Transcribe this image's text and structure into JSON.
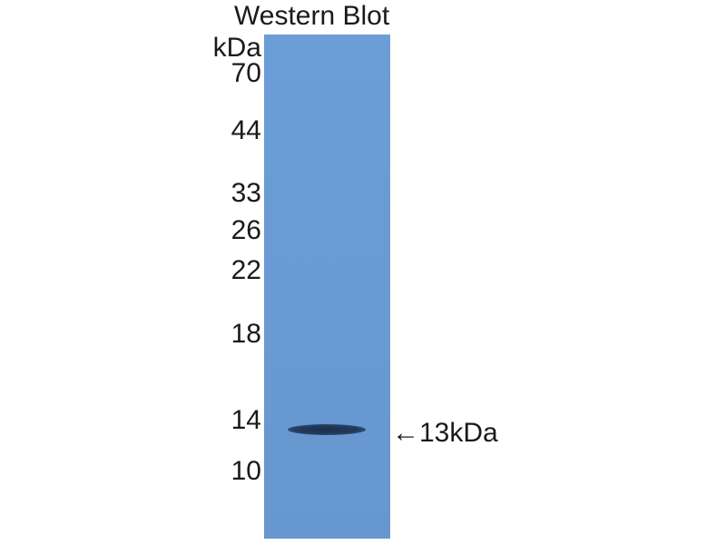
{
  "title": "Western Blot",
  "unit_label": "kDa",
  "markers": [
    "70",
    "44",
    "33",
    "26",
    "22",
    "18",
    "14",
    "10"
  ],
  "band": {
    "label": "←13kDa",
    "size_kda": 13
  },
  "colors": {
    "lane": "#6a9bd4",
    "band": "#1f3452",
    "text": "#1a1a1a"
  }
}
